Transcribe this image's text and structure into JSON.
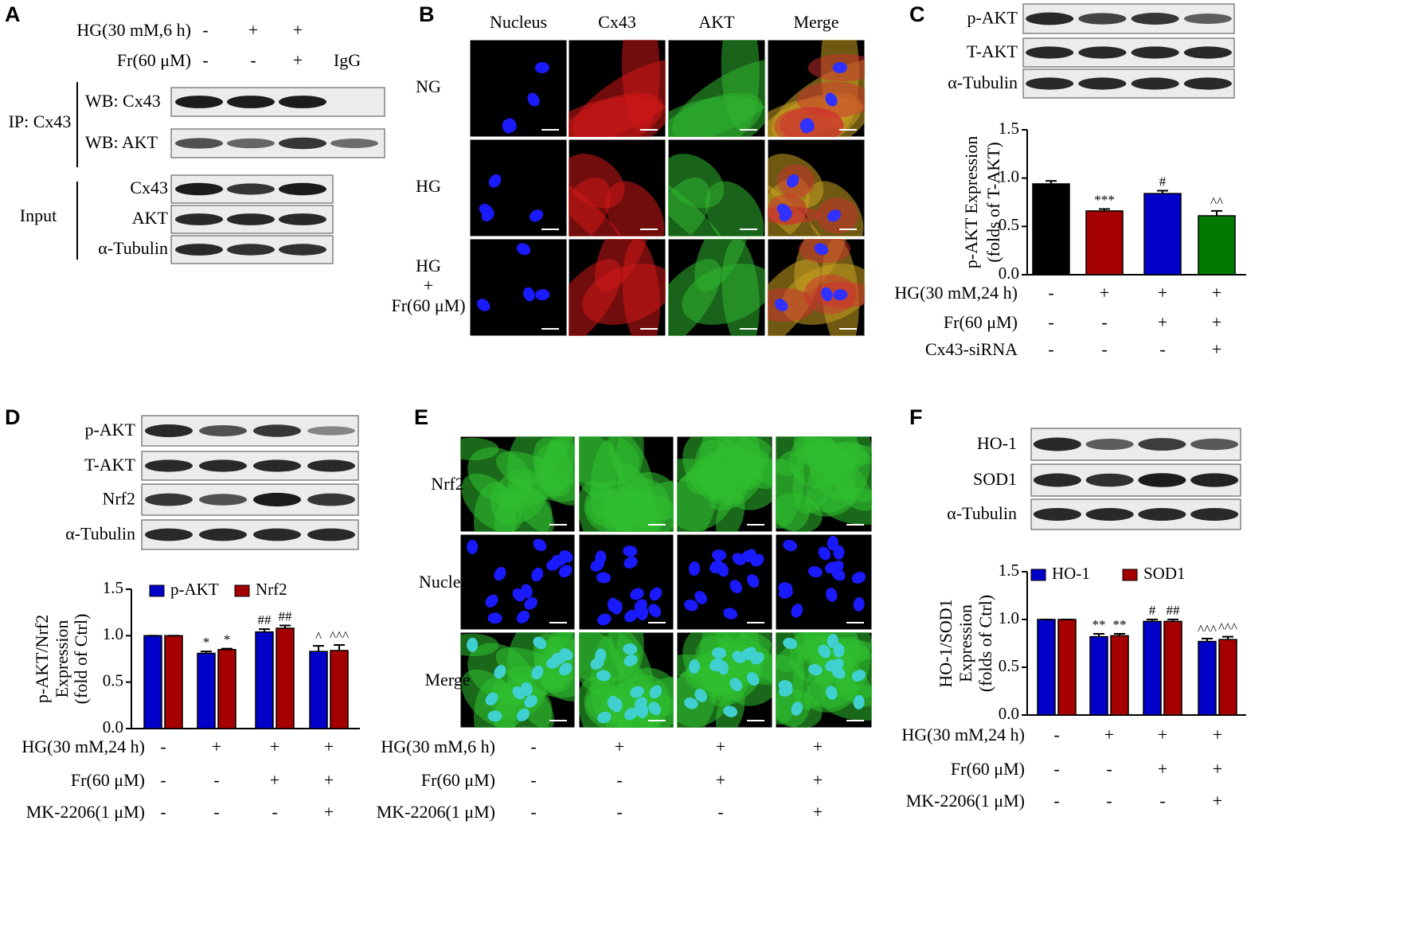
{
  "panels": {
    "A": {
      "label": "A",
      "conditions": [
        {
          "label": "HG(30 mM,6 h)",
          "signs": [
            "-",
            "+",
            "+"
          ]
        },
        {
          "label": "Fr(60 μM)",
          "signs": [
            "-",
            "-",
            "+",
            "IgG"
          ]
        }
      ],
      "ip_label": "IP: Cx43",
      "ip_blots": [
        "WB: Cx43",
        "WB: AKT"
      ],
      "input_label": "Input",
      "input_blots": [
        "Cx43",
        "AKT",
        "α-Tubulin"
      ]
    },
    "B": {
      "label": "B",
      "columns": [
        "Nucleus",
        "Cx43",
        "AKT",
        "Merge"
      ],
      "rows": [
        [
          "NG"
        ],
        [
          "HG"
        ],
        [
          "HG",
          "+",
          "Fr(60 μM)"
        ]
      ]
    },
    "C": {
      "label": "C",
      "blots": [
        "p-AKT",
        "T-AKT",
        "α-Tubulin"
      ]
    },
    "D": {
      "label": "D",
      "blots": [
        "p-AKT",
        "T-AKT",
        "Nrf2",
        "α-Tubulin"
      ]
    },
    "E": {
      "label": "E",
      "rows": [
        "Nrf2",
        "Nucleus",
        "Merge"
      ],
      "conditions": [
        {
          "label": "HG(30 mM,6 h)",
          "signs": [
            "-",
            "+",
            "+",
            "+"
          ]
        },
        {
          "label": "Fr(60 μM)",
          "signs": [
            "-",
            "-",
            "+",
            "+"
          ]
        },
        {
          "label": "MK-2206(1 μM)",
          "signs": [
            "-",
            "-",
            "-",
            "+"
          ]
        }
      ]
    },
    "F": {
      "label": "F",
      "blots": [
        "HO-1",
        "SOD1",
        "α-Tubulin"
      ]
    }
  },
  "chart_data": [
    {
      "type": "bar",
      "ylabel": [
        "p-AKT Expression",
        "(folds of T-AKT)"
      ],
      "ylim": [
        0,
        1.5
      ],
      "yticks": [
        {
          "value": 0,
          "label": "0.0"
        },
        0.5,
        {
          "value": 1,
          "label": "1.0"
        },
        1.5
      ],
      "series": [
        {
          "colors": [
            "#000000",
            "#a50000",
            "#0000c8",
            "#007a00"
          ],
          "values": [
            0.94,
            0.66,
            0.84,
            0.61
          ],
          "errors": [
            0.03,
            0.02,
            0.03,
            0.05
          ],
          "annotations": [
            null,
            "***",
            "#",
            "^^"
          ]
        }
      ],
      "conditions": [
        {
          "label": "HG(30 mM,24 h)",
          "signs": [
            "-",
            "+",
            "+",
            "+"
          ]
        },
        {
          "label": "Fr(60 μM)",
          "signs": [
            "-",
            "-",
            "+",
            "+"
          ]
        },
        {
          "label": "Cx43-siRNA",
          "signs": [
            "-",
            "-",
            "-",
            "+"
          ]
        }
      ]
    },
    {
      "type": "bar",
      "ylabel": [
        "p-AKT/Nrf2",
        "Expression",
        "(fold of Ctrl)"
      ],
      "ylim": [
        0,
        1.5
      ],
      "yticks": [
        {
          "value": 0,
          "label": "0.0"
        },
        0.5,
        {
          "value": 1,
          "label": "1.0"
        },
        1.5
      ],
      "series": [
        {
          "name": "p-AKT",
          "color": "#0000c8",
          "values": [
            1.0,
            0.81,
            1.04,
            0.83
          ],
          "errors": [
            0,
            0.02,
            0.03,
            0.06
          ],
          "annotations": [
            null,
            "*",
            "##",
            "^"
          ]
        },
        {
          "name": "Nrf2",
          "color": "#a50000",
          "values": [
            1.0,
            0.85,
            1.08,
            0.84
          ],
          "errors": [
            0,
            0.01,
            0.03,
            0.06
          ],
          "annotations": [
            null,
            "*",
            "##",
            "^^^"
          ]
        }
      ],
      "conditions": [
        {
          "label": "HG(30 mM,24 h)",
          "signs": [
            "-",
            "+",
            "+",
            "+"
          ]
        },
        {
          "label": "Fr(60 μM)",
          "signs": [
            "-",
            "-",
            "+",
            "+"
          ]
        },
        {
          "label": "MK-2206(1 μM)",
          "signs": [
            "-",
            "-",
            "-",
            "+"
          ]
        }
      ]
    },
    {
      "type": "bar",
      "ylabel": [
        "HO-1/SOD1",
        "Expression",
        "(folds of Ctrl)"
      ],
      "ylim": [
        0,
        1.5
      ],
      "yticks": [
        {
          "value": 0,
          "label": "0.0"
        },
        0.5,
        {
          "value": 1,
          "label": "1.0"
        },
        1.5
      ],
      "series": [
        {
          "name": "HO-1",
          "color": "#0000c8",
          "values": [
            1.0,
            0.82,
            0.98,
            0.77
          ],
          "errors": [
            0,
            0.03,
            0.02,
            0.03
          ],
          "annotations": [
            null,
            "**",
            "#",
            "^^^"
          ]
        },
        {
          "name": "SOD1",
          "color": "#a50000",
          "values": [
            1.0,
            0.83,
            0.98,
            0.79
          ],
          "errors": [
            0,
            0.02,
            0.02,
            0.03
          ],
          "annotations": [
            null,
            "**",
            "##",
            "^^^"
          ]
        }
      ],
      "conditions": [
        {
          "label": "HG(30 mM,24 h)",
          "signs": [
            "-",
            "+",
            "+",
            "+"
          ]
        },
        {
          "label": "Fr(60 μM)",
          "signs": [
            "-",
            "-",
            "+",
            "+"
          ]
        },
        {
          "label": "MK-2206(1 μM)",
          "signs": [
            "-",
            "-",
            "-",
            "+"
          ]
        }
      ]
    }
  ]
}
